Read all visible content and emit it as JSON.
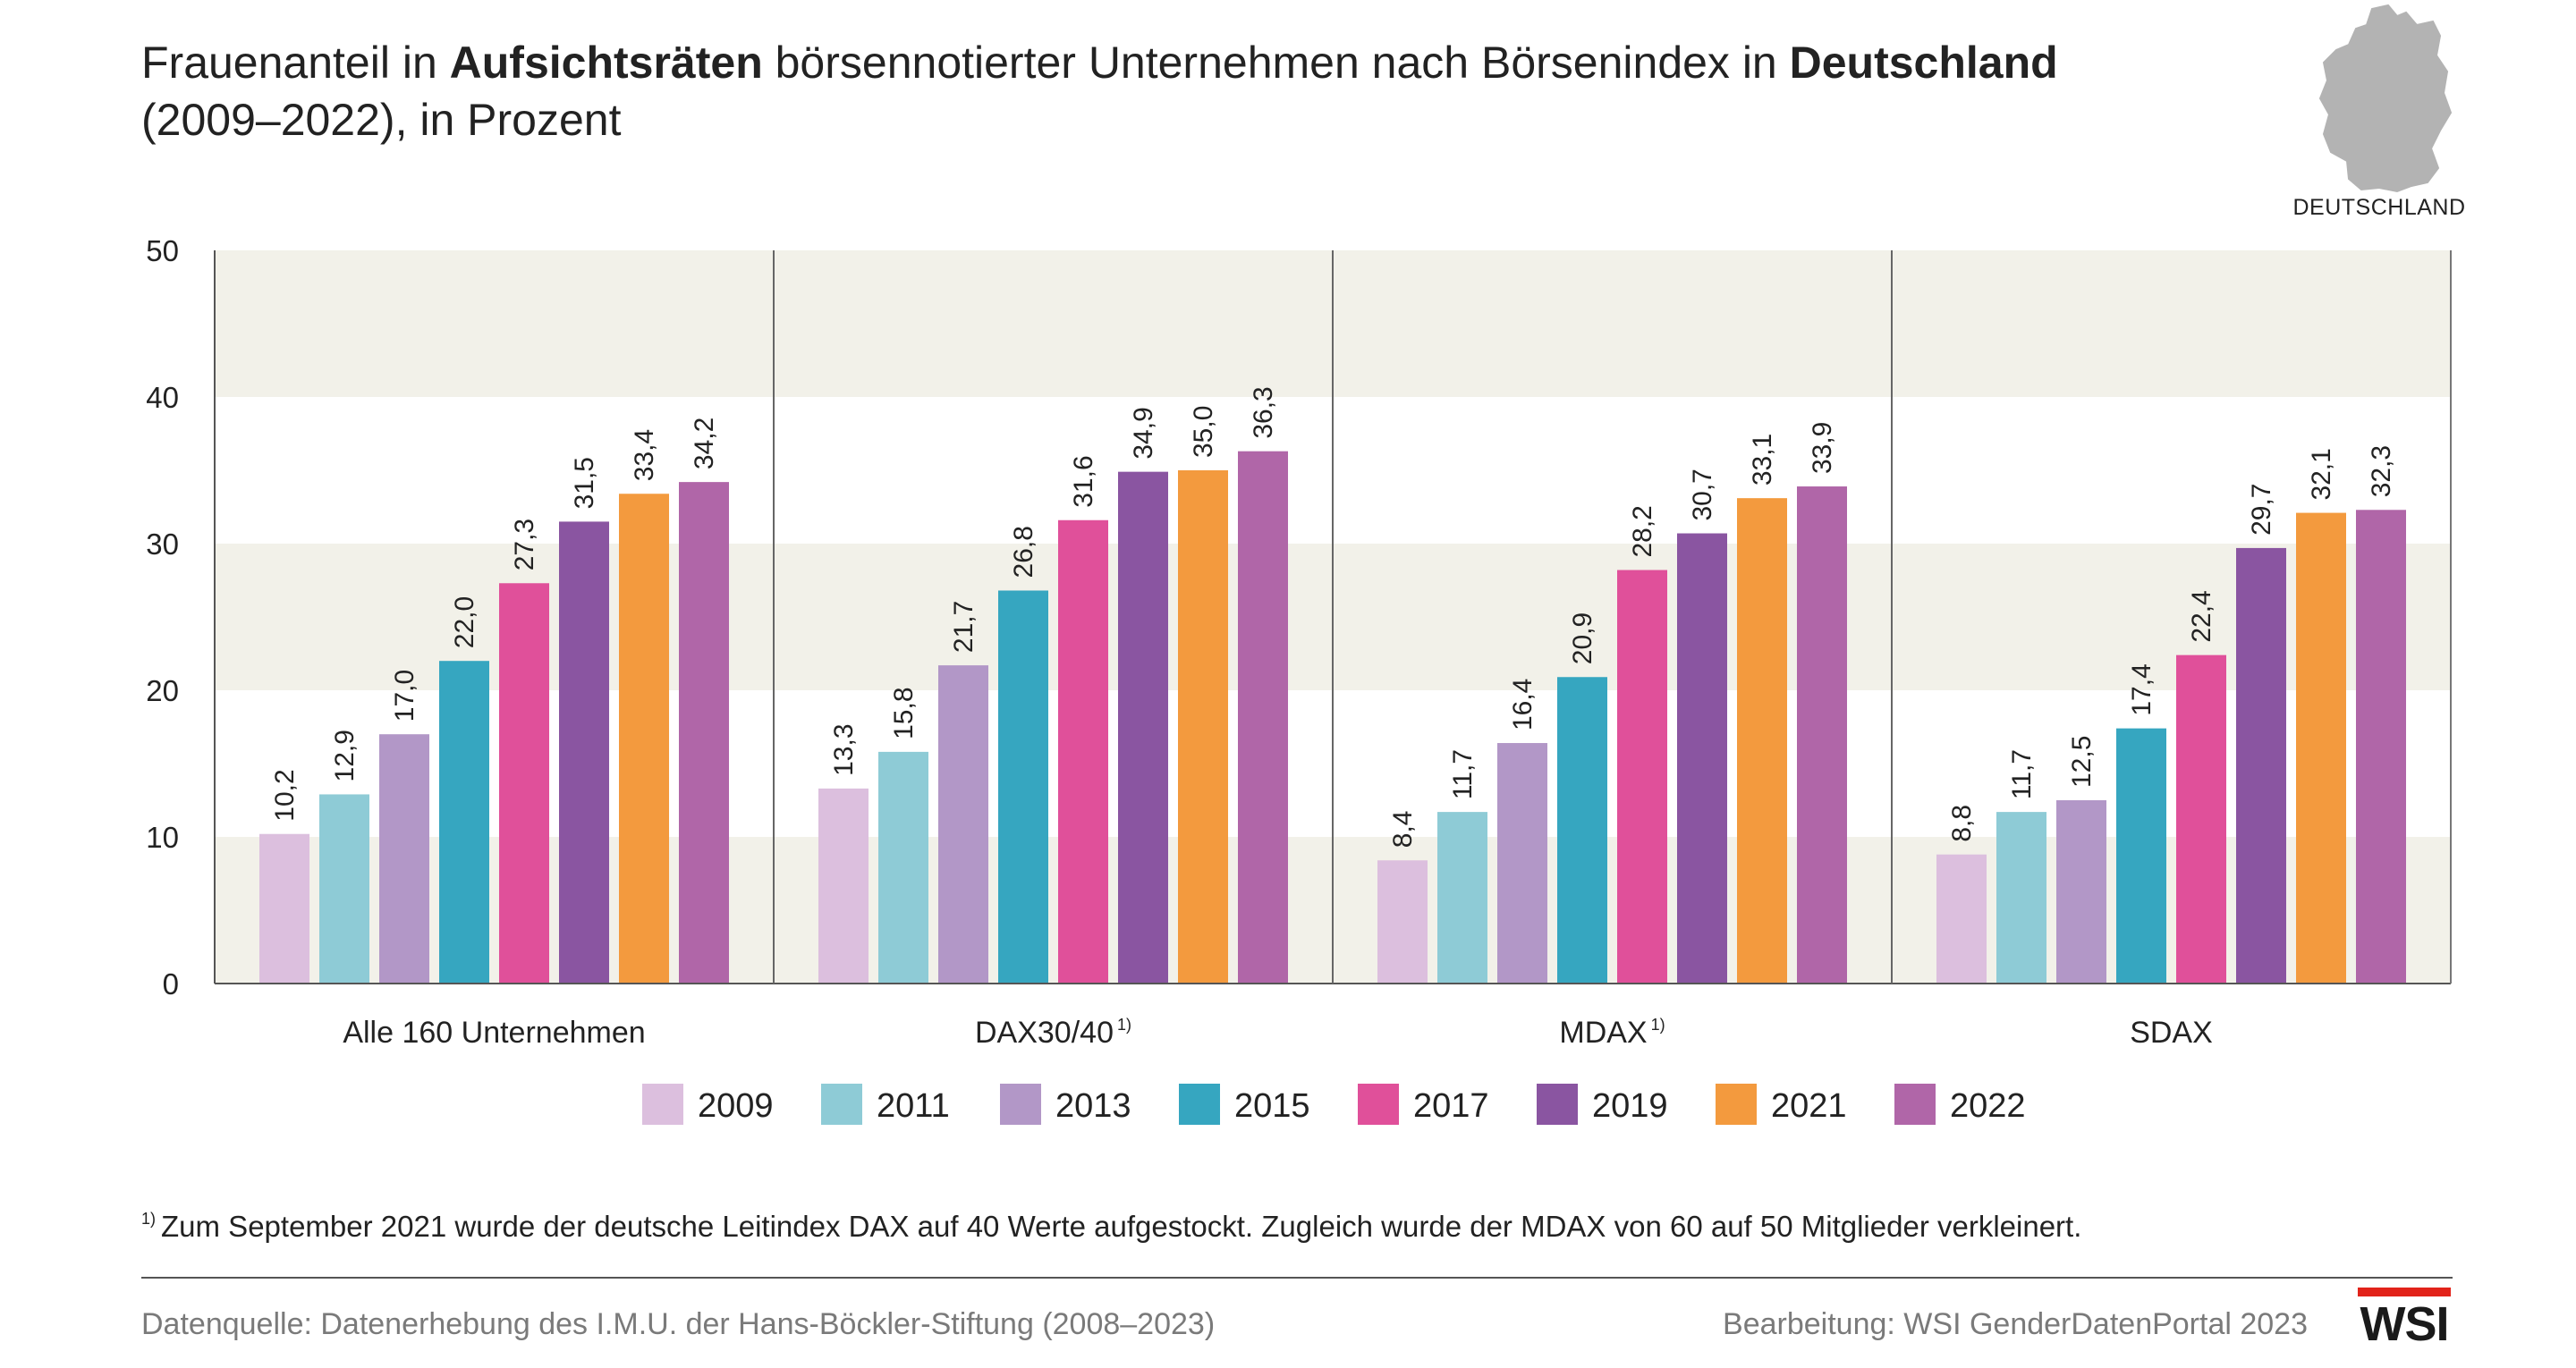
{
  "title": {
    "parts": [
      {
        "text": "Frauenanteil in ",
        "bold": false
      },
      {
        "text": "Aufsichtsräten",
        "bold": true
      },
      {
        "text": " börsennotierter Unternehmen nach Börsenindex in ",
        "bold": false
      },
      {
        "text": "Deutschland",
        "bold": true
      },
      {
        "text": "(2009–2022), in Prozent",
        "bold": false,
        "newline": true
      }
    ]
  },
  "map": {
    "label": "DEUTSCHLAND",
    "icon": "germany-map-icon",
    "color": "#b3b3b3"
  },
  "chart_data": {
    "type": "bar",
    "categories": [
      "Alle 160 Unternehmen",
      "DAX30/40",
      "MDAX",
      "SDAX"
    ],
    "category_footnote_marks": [
      "",
      "1)",
      "1)",
      ""
    ],
    "series": [
      {
        "name": "2009",
        "color": "#dcbfde",
        "values": [
          10.2,
          13.3,
          8.4,
          8.8
        ]
      },
      {
        "name": "2011",
        "color": "#8ecbd6",
        "values": [
          12.9,
          15.8,
          11.7,
          11.7
        ]
      },
      {
        "name": "2013",
        "color": "#b297c7",
        "values": [
          17.0,
          21.7,
          16.4,
          12.5
        ]
      },
      {
        "name": "2015",
        "color": "#36a6c0",
        "values": [
          22.0,
          26.8,
          20.9,
          17.4
        ]
      },
      {
        "name": "2017",
        "color": "#e0509a",
        "values": [
          27.3,
          31.6,
          28.2,
          22.4
        ]
      },
      {
        "name": "2019",
        "color": "#8a55a1",
        "values": [
          31.5,
          34.9,
          30.7,
          29.7
        ]
      },
      {
        "name": "2021",
        "color": "#f39a3e",
        "values": [
          33.4,
          35.0,
          33.1,
          32.1
        ]
      },
      {
        "name": "2022",
        "color": "#b066a8",
        "values": [
          34.2,
          36.3,
          33.9,
          32.3
        ]
      }
    ],
    "value_labels": [
      [
        "10,2",
        "13,3",
        "8,4",
        "8,8"
      ],
      [
        "12,9",
        "15,8",
        "11,7",
        "11,7"
      ],
      [
        "17,0",
        "21,7",
        "16,4",
        "12,5"
      ],
      [
        "22,0",
        "26,8",
        "20,9",
        "17,4"
      ],
      [
        "27,3",
        "31,6",
        "28,2",
        "22,4"
      ],
      [
        "31,5",
        "34,9",
        "30,7",
        "29,7"
      ],
      [
        "33,4",
        "35,0",
        "33,1",
        "32,1"
      ],
      [
        "34,2",
        "36,3",
        "33,9",
        "32,3"
      ]
    ],
    "ylim": [
      0,
      50
    ],
    "yticks": [
      0,
      10,
      20,
      30,
      40,
      50
    ],
    "grid_bands": true,
    "band_color": "#f2f1e9",
    "legend_position": "bottom",
    "xlabel": "",
    "ylabel": ""
  },
  "footnote": {
    "mark": "1)",
    "text": "Zum September 2021 wurde der deutsche Leitindex DAX auf 40 Werte aufgestockt. Zugleich wurde der MDAX von 60 auf 50 Mitglieder verkleinert."
  },
  "source": "Datenquelle: Datenerhebung des I.M.U. der Hans-Böckler-Stiftung (2008–2023)",
  "credit": "Bearbeitung: WSI GenderDatenPortal 2023",
  "logo": {
    "text": "WSI",
    "accent": "#e2231a"
  }
}
